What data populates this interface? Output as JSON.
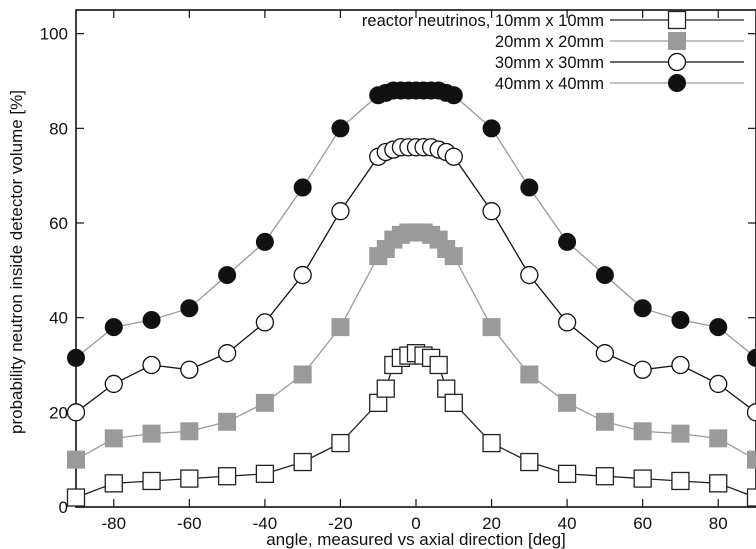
{
  "chart_data": {
    "type": "line",
    "title": "",
    "xlabel": "angle, measured vs axial direction [deg]",
    "ylabel": "probability neutron inside detector volume [%]",
    "xlim": [
      -90,
      90
    ],
    "ylim": [
      0,
      105
    ],
    "xticks": [
      -80,
      -60,
      -40,
      -20,
      0,
      20,
      40,
      60,
      80
    ],
    "yticks": [
      0,
      20,
      40,
      60,
      80,
      100
    ],
    "grid": false,
    "legend_position": "top-right",
    "x": [
      -90,
      -80,
      -70,
      -60,
      -50,
      -40,
      -30,
      -20,
      -10,
      -8,
      -6,
      -4,
      -2,
      0,
      2,
      4,
      6,
      8,
      10,
      20,
      30,
      40,
      50,
      60,
      70,
      80,
      90
    ],
    "series": [
      {
        "name": "reactor neutrinos, 10mm x 10mm",
        "marker": "open-square",
        "line_color": "#222222",
        "marker_color": "#222222",
        "values": [
          2,
          5,
          5.5,
          6,
          6.5,
          7,
          9.5,
          13.5,
          22,
          25,
          30,
          31.5,
          32,
          32.5,
          32,
          31.5,
          30,
          25,
          22,
          13.5,
          9.5,
          7,
          6.5,
          6,
          5.5,
          5,
          2
        ]
      },
      {
        "name": "20mm x 20mm",
        "marker": "filled-square",
        "line_color": "#9a9a9a",
        "marker_color": "#9a9a9a",
        "values": [
          10,
          14.5,
          15.5,
          16,
          18,
          22,
          28,
          38,
          53,
          54.5,
          56.5,
          57.5,
          58,
          58,
          58,
          57.5,
          56.5,
          54.5,
          53,
          38,
          28,
          22,
          18,
          16,
          15.5,
          14.5,
          10
        ]
      },
      {
        "name": "30mm x 30mm",
        "marker": "open-circle",
        "line_color": "#111111",
        "marker_color": "#111111",
        "values": [
          20,
          26,
          30,
          29,
          32.5,
          39,
          49,
          62.5,
          74,
          75,
          75.5,
          76,
          76,
          76,
          76,
          76,
          75.5,
          75,
          74,
          62.5,
          49,
          39,
          32.5,
          29,
          30,
          26,
          20
        ]
      },
      {
        "name": "40mm x 40mm",
        "marker": "filled-circle",
        "line_color": "#9a9a9a",
        "marker_color": "#111111",
        "values": [
          31.5,
          38,
          39.5,
          42,
          49,
          56,
          67.5,
          80,
          87,
          87.5,
          88,
          88,
          88,
          88,
          88,
          88,
          88,
          87.5,
          87,
          80,
          67.5,
          56,
          49,
          42,
          39.5,
          38,
          31.5
        ]
      }
    ]
  }
}
